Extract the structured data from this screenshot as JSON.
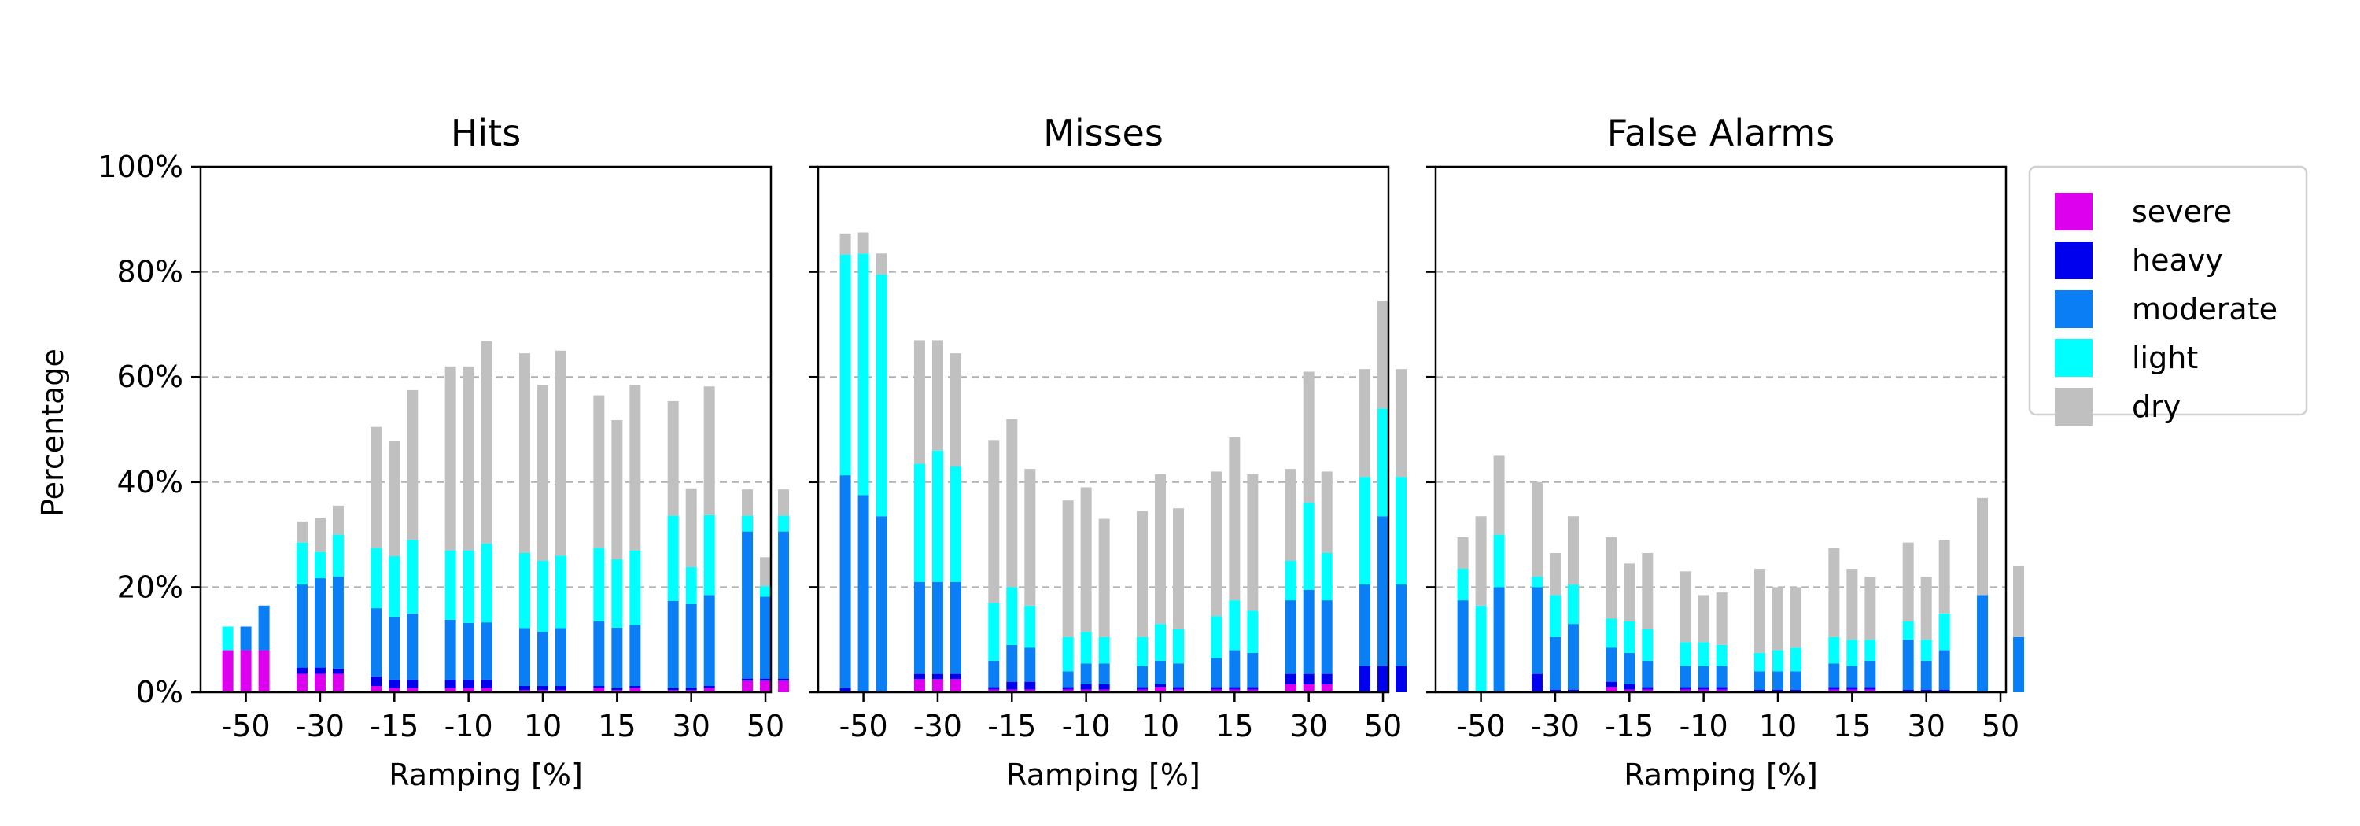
{
  "chart_data": {
    "type": "bar",
    "subtype": "stacked-grouped",
    "ylabel": "Percentage",
    "ylim": [
      0,
      100
    ],
    "yticks": [
      "0%",
      "20%",
      "40%",
      "60%",
      "80%",
      "100%"
    ],
    "ytick_values": [
      0,
      20,
      40,
      60,
      80,
      100
    ],
    "categories": [
      "-50",
      "-30",
      "-15",
      "-10",
      "10",
      "15",
      "30",
      "50"
    ],
    "bars_per_category": 3,
    "layers": [
      "severe",
      "heavy",
      "moderate",
      "light",
      "dry"
    ],
    "colors": {
      "severe": "#dd00ee",
      "heavy": "#0000ee",
      "moderate": "#0a7ff5",
      "light": "#00ffff",
      "dry": "#c0c0c0"
    },
    "grid": "horizontal-dashed",
    "legend_position": "right",
    "legend": [
      "severe",
      "heavy",
      "moderate",
      "light",
      "dry"
    ],
    "panels": [
      {
        "title": "Hits",
        "xlabel": "Ramping [%]",
        "bars": [
          {
            "category": "-50",
            "stack": [
              8,
              0,
              0,
              4.5,
              0
            ]
          },
          {
            "category": "-50",
            "stack": [
              8,
              0,
              4.5,
              0,
              0
            ]
          },
          {
            "category": "-50",
            "stack": [
              8,
              0,
              8.5,
              0,
              0
            ]
          },
          {
            "category": "-30",
            "stack": [
              3.5,
              1.2,
              15.8,
              8,
              4
            ]
          },
          {
            "category": "-30",
            "stack": [
              3.5,
              1.2,
              17,
              5,
              6.5
            ]
          },
          {
            "category": "-30",
            "stack": [
              3.5,
              1,
              17.5,
              8,
              5.5
            ]
          },
          {
            "category": "-15",
            "stack": [
              1.2,
              1.8,
              13,
              11.5,
              23
            ]
          },
          {
            "category": "-15",
            "stack": [
              0.8,
              1.6,
              12,
              11.5,
              22
            ]
          },
          {
            "category": "-15",
            "stack": [
              0.8,
              1.6,
              12.6,
              14,
              28.5
            ]
          },
          {
            "category": "-10",
            "stack": [
              0.8,
              1.6,
              11.4,
              13.2,
              35
            ]
          },
          {
            "category": "-10",
            "stack": [
              0.8,
              1.6,
              10.8,
              13.8,
              35
            ]
          },
          {
            "category": "-10",
            "stack": [
              0.8,
              1.6,
              10.9,
              15,
              38.5
            ]
          },
          {
            "category": "10",
            "stack": [
              0.4,
              0.8,
              11,
              14.3,
              38
            ]
          },
          {
            "category": "10",
            "stack": [
              0.4,
              0.8,
              10.3,
              13.5,
              33.5
            ]
          },
          {
            "category": "10",
            "stack": [
              0.4,
              0.8,
              11,
              13.8,
              39
            ]
          },
          {
            "category": "15",
            "stack": [
              0.8,
              0.4,
              12.3,
              14,
              29
            ]
          },
          {
            "category": "15",
            "stack": [
              0.4,
              0.4,
              11.5,
              13,
              26.5
            ]
          },
          {
            "category": "15",
            "stack": [
              0.8,
              0.4,
              11.6,
              14.2,
              31.5
            ]
          },
          {
            "category": "30",
            "stack": [
              0.4,
              0.4,
              16.6,
              16.2,
              21.8
            ]
          },
          {
            "category": "30",
            "stack": [
              0.4,
              0.4,
              16,
              7,
              15
            ]
          },
          {
            "category": "30",
            "stack": [
              0.8,
              0.4,
              17.3,
              15.2,
              24.5
            ]
          },
          {
            "category": "50",
            "stack": [
              2.2,
              0.4,
              28,
              3,
              5
            ]
          },
          {
            "category": "50",
            "stack": [
              2.2,
              0.4,
              15.6,
              2,
              5.5
            ]
          },
          {
            "category": "50",
            "stack": [
              2.2,
              0.4,
              28,
              3,
              5
            ]
          }
        ]
      },
      {
        "title": "Misses",
        "xlabel": "Ramping [%]",
        "bars": [
          {
            "category": "-50",
            "stack": [
              0,
              0.8,
              40.5,
              42,
              4
            ]
          },
          {
            "category": "-50",
            "stack": [
              0,
              0,
              37.5,
              46,
              4
            ]
          },
          {
            "category": "-50",
            "stack": [
              0,
              0,
              33.5,
              46,
              4
            ]
          },
          {
            "category": "-30",
            "stack": [
              2.5,
              1,
              17.5,
              22.5,
              23.5
            ]
          },
          {
            "category": "-30",
            "stack": [
              2.5,
              1,
              17.5,
              25,
              21
            ]
          },
          {
            "category": "-30",
            "stack": [
              2.5,
              1,
              17.5,
              22,
              21.5
            ]
          },
          {
            "category": "-15",
            "stack": [
              0.5,
              0.5,
              5,
              11,
              31
            ]
          },
          {
            "category": "-15",
            "stack": [
              0.5,
              1.5,
              7,
              11,
              32
            ]
          },
          {
            "category": "-15",
            "stack": [
              0.5,
              1.5,
              6.5,
              8,
              26
            ]
          },
          {
            "category": "-10",
            "stack": [
              0.5,
              0.5,
              3,
              6.5,
              26
            ]
          },
          {
            "category": "-10",
            "stack": [
              0.5,
              1,
              4,
              6,
              27.5
            ]
          },
          {
            "category": "-10",
            "stack": [
              0.5,
              1,
              4,
              5,
              22.5
            ]
          },
          {
            "category": "10",
            "stack": [
              0.5,
              0.5,
              4,
              5.5,
              24
            ]
          },
          {
            "category": "10",
            "stack": [
              1,
              0.5,
              4.5,
              7,
              28.5
            ]
          },
          {
            "category": "10",
            "stack": [
              0.5,
              0.5,
              4.5,
              6.5,
              23
            ]
          },
          {
            "category": "15",
            "stack": [
              0.5,
              0.5,
              5.5,
              8,
              27.5
            ]
          },
          {
            "category": "15",
            "stack": [
              0.5,
              0.5,
              7,
              9.5,
              31
            ]
          },
          {
            "category": "15",
            "stack": [
              0.5,
              0.5,
              6.5,
              8,
              26
            ]
          },
          {
            "category": "30",
            "stack": [
              1.5,
              2,
              14,
              7.5,
              17.5
            ]
          },
          {
            "category": "30",
            "stack": [
              1.5,
              2,
              16,
              16.5,
              25
            ]
          },
          {
            "category": "30",
            "stack": [
              1.5,
              2,
              14,
              9,
              15.5
            ]
          },
          {
            "category": "50",
            "stack": [
              0,
              5,
              15.5,
              20.5,
              20.5
            ]
          },
          {
            "category": "50",
            "stack": [
              0,
              5,
              28.5,
              20.5,
              20.5
            ]
          },
          {
            "category": "50",
            "stack": [
              0,
              5,
              15.5,
              20.5,
              20.5
            ]
          }
        ]
      },
      {
        "title": "False Alarms",
        "xlabel": "Ramping [%]",
        "bars": [
          {
            "category": "-50",
            "stack": [
              0,
              0,
              17.5,
              6,
              6
            ]
          },
          {
            "category": "-50",
            "stack": [
              0,
              0,
              0,
              16.5,
              17
            ]
          },
          {
            "category": "-50",
            "stack": [
              0,
              0,
              20,
              10,
              15
            ]
          },
          {
            "category": "-30",
            "stack": [
              0,
              3.5,
              16.5,
              2,
              18
            ]
          },
          {
            "category": "-30",
            "stack": [
              0,
              0.5,
              10,
              8,
              8
            ]
          },
          {
            "category": "-30",
            "stack": [
              0,
              0.5,
              12.5,
              7.5,
              13
            ]
          },
          {
            "category": "-15",
            "stack": [
              1,
              1,
              6.5,
              5.5,
              15.5
            ]
          },
          {
            "category": "-15",
            "stack": [
              0.5,
              1,
              6,
              6,
              11
            ]
          },
          {
            "category": "-15",
            "stack": [
              0.5,
              0.5,
              5,
              6,
              14.5
            ]
          },
          {
            "category": "-10",
            "stack": [
              0.5,
              0.5,
              4,
              4.5,
              13.5
            ]
          },
          {
            "category": "-10",
            "stack": [
              0.5,
              0.5,
              4,
              4.5,
              9
            ]
          },
          {
            "category": "-10",
            "stack": [
              0.5,
              0.5,
              4,
              4,
              10
            ]
          },
          {
            "category": "10",
            "stack": [
              0,
              0.5,
              3.5,
              3.5,
              16
            ]
          },
          {
            "category": "10",
            "stack": [
              0,
              0.5,
              3.5,
              4,
              12
            ]
          },
          {
            "category": "10",
            "stack": [
              0,
              0.5,
              3.5,
              4.5,
              11.5
            ]
          },
          {
            "category": "15",
            "stack": [
              0.5,
              0.5,
              4.5,
              5,
              17
            ]
          },
          {
            "category": "15",
            "stack": [
              0.5,
              0.5,
              4,
              5,
              13.5
            ]
          },
          {
            "category": "15",
            "stack": [
              0.5,
              0.5,
              5,
              4,
              12
            ]
          },
          {
            "category": "30",
            "stack": [
              0,
              0.5,
              9.5,
              3.5,
              15
            ]
          },
          {
            "category": "30",
            "stack": [
              0,
              0.5,
              5.5,
              4,
              12
            ]
          },
          {
            "category": "30",
            "stack": [
              0,
              0.5,
              7.5,
              7,
              14
            ]
          },
          {
            "category": "50",
            "stack": [
              0,
              0,
              18.5,
              0,
              18.5
            ]
          },
          {
            "category": "50",
            "stack": [
              0,
              0,
              0,
              0,
              0
            ]
          },
          {
            "category": "50",
            "stack": [
              0,
              0,
              10.5,
              0,
              13.5
            ]
          }
        ]
      }
    ]
  }
}
